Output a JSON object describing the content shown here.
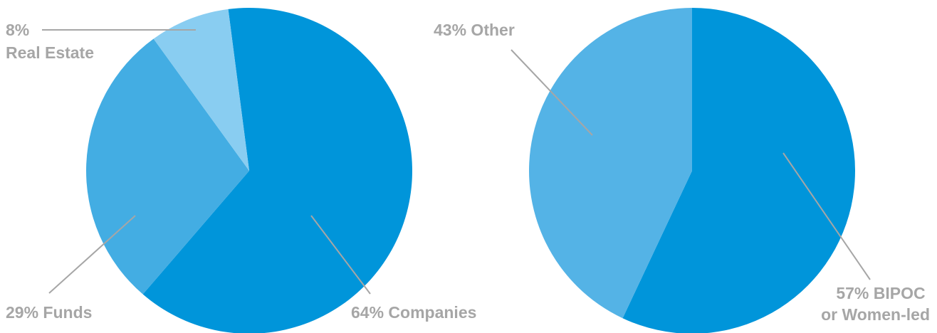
{
  "chart_data": [
    {
      "type": "pie",
      "slices": [
        {
          "label": "Companies",
          "value": 64,
          "display": "64% Companies",
          "color": "#0095da"
        },
        {
          "label": "Funds",
          "value": 29,
          "display": "29% Funds",
          "color": "#43ade3"
        },
        {
          "label": "Real Estate",
          "value": 8,
          "display_lines": [
            "8%",
            "Real Estate"
          ],
          "color": "#89cdf1"
        }
      ]
    },
    {
      "type": "pie",
      "slices": [
        {
          "label": "BIPOC or Women-led",
          "value": 57,
          "display_lines": [
            "57% BIPOC",
            "or Women-led"
          ],
          "color": "#0095da"
        },
        {
          "label": "Other",
          "value": 43,
          "display": "43% Other",
          "color": "#54b3e6"
        }
      ]
    }
  ],
  "colors": {
    "leader_line": "#a6a6a6",
    "label_text": "#a6a6a6"
  }
}
